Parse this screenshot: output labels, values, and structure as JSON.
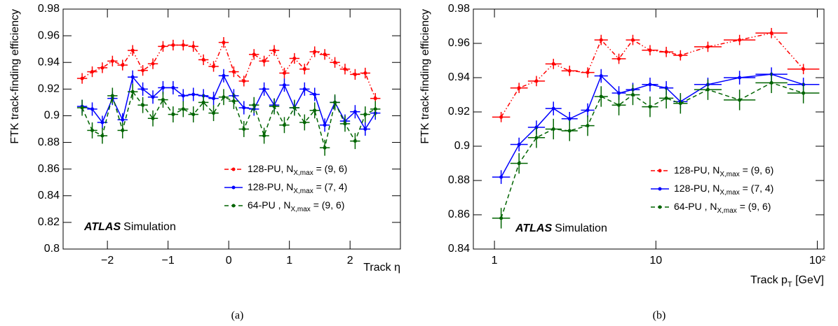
{
  "chart_data": [
    {
      "type": "line",
      "caption": "(a)",
      "ylabel": "FTK track-finding efficiency",
      "xlabel": "Track η",
      "brand": "ATLAS",
      "brand_tail": "Simulation",
      "xlim": [
        -2.73,
        2.83
      ],
      "ylim": [
        0.8,
        0.98
      ],
      "xticks": [
        {
          "value": -2,
          "label": "−2"
        },
        {
          "value": -1,
          "label": "−1"
        },
        0,
        1,
        2
      ],
      "yticks": [
        0.8,
        0.82,
        0.84,
        0.86,
        0.88,
        0.9,
        0.92,
        0.94,
        0.96,
        0.98
      ],
      "x": [
        -2.4167,
        -2.25,
        -2.0833,
        -1.9167,
        -1.75,
        -1.5833,
        -1.4167,
        -1.25,
        -1.0833,
        -0.9167,
        -0.75,
        -0.5833,
        -0.4167,
        -0.25,
        -0.0833,
        0.0833,
        0.25,
        0.4167,
        0.5833,
        0.75,
        0.9167,
        1.0833,
        1.25,
        1.4167,
        1.5833,
        1.75,
        1.9167,
        2.0833,
        2.25,
        2.4167
      ],
      "series": [
        {
          "name": [
            "128-PU, N",
            "X,max",
            " = (9, 6)"
          ],
          "color": "#ff0000",
          "linestyle": "dashdotdot",
          "yerr": 0.004,
          "values": [
            0.928,
            0.933,
            0.936,
            0.941,
            0.938,
            0.949,
            0.934,
            0.939,
            0.952,
            0.953,
            0.953,
            0.952,
            0.942,
            0.937,
            0.955,
            0.933,
            0.926,
            0.946,
            0.941,
            0.949,
            0.932,
            0.943,
            0.935,
            0.948,
            0.946,
            0.94,
            0.935,
            0.931,
            0.932,
            0.913
          ]
        },
        {
          "name": [
            "128-PU, N",
            "X,max",
            " = (7, 4)"
          ],
          "color": "#0000ff",
          "linestyle": "solid",
          "yerr": 0.005,
          "values": [
            0.907,
            0.905,
            0.895,
            0.913,
            0.897,
            0.929,
            0.92,
            0.914,
            0.921,
            0.921,
            0.915,
            0.916,
            0.915,
            0.913,
            0.93,
            0.915,
            0.906,
            0.905,
            0.92,
            0.908,
            0.923,
            0.906,
            0.92,
            0.916,
            0.893,
            0.91,
            0.896,
            0.903,
            0.89,
            0.902
          ]
        },
        {
          "name": [
            "64-PU ,  N",
            "X,max",
            " = (9, 6)"
          ],
          "color": "#006400",
          "linestyle": "dashed",
          "yerr": 0.006,
          "values": [
            0.906,
            0.889,
            0.885,
            0.915,
            0.889,
            0.918,
            0.908,
            0.898,
            0.912,
            0.901,
            0.905,
            0.901,
            0.91,
            0.902,
            0.914,
            0.911,
            0.89,
            0.908,
            0.885,
            0.907,
            0.893,
            0.906,
            0.895,
            0.904,
            0.876,
            0.91,
            0.894,
            0.881,
            0.901,
            0.905
          ]
        }
      ]
    },
    {
      "type": "line",
      "caption": "(b)",
      "ylabel": "FTK track-finding efficiency",
      "xlabel": [
        "Track p",
        "T",
        " [GeV]"
      ],
      "brand": "ATLAS",
      "brand_tail": "Simulation",
      "xlog": true,
      "xlim": [
        0.74,
        110
      ],
      "ylim": [
        0.84,
        0.98
      ],
      "xticks": [
        1,
        10,
        {
          "value": 100,
          "label": "10²"
        }
      ],
      "yticks": [
        0.84,
        0.86,
        0.88,
        0.9,
        0.92,
        0.94,
        0.96,
        0.98
      ],
      "x": [
        1.1,
        1.42,
        1.82,
        2.32,
        2.92,
        3.78,
        4.58,
        5.9,
        7.2,
        9.2,
        11.6,
        14.2,
        21,
        33,
        52,
        82
      ],
      "series": [
        {
          "name": [
            "128-PU, N",
            "X,max",
            " = (9, 6)"
          ],
          "color": "#ff0000",
          "linestyle": "dashdotdot",
          "yerr": 0.003,
          "values": [
            0.917,
            0.934,
            0.938,
            0.948,
            0.944,
            0.943,
            0.962,
            0.951,
            0.962,
            0.956,
            0.955,
            0.953,
            0.958,
            0.962,
            0.966,
            0.945
          ]
        },
        {
          "name": [
            "128-PU, N",
            "X,max",
            " = (7, 4)"
          ],
          "color": "#0000ff",
          "linestyle": "solid",
          "yerr": 0.004,
          "values": [
            0.882,
            0.901,
            0.911,
            0.922,
            0.916,
            0.921,
            0.941,
            0.931,
            0.933,
            0.936,
            0.934,
            0.926,
            0.936,
            0.94,
            0.942,
            0.936
          ]
        },
        {
          "name": [
            "64-PU ,  N",
            "X,max",
            " = (9, 6)"
          ],
          "color": "#006400",
          "linestyle": "dashed",
          "yerr": 0.006,
          "values": [
            0.858,
            0.89,
            0.905,
            0.91,
            0.909,
            0.912,
            0.929,
            0.924,
            0.93,
            0.923,
            0.928,
            0.925,
            0.933,
            0.927,
            0.937,
            0.931
          ]
        }
      ]
    }
  ]
}
